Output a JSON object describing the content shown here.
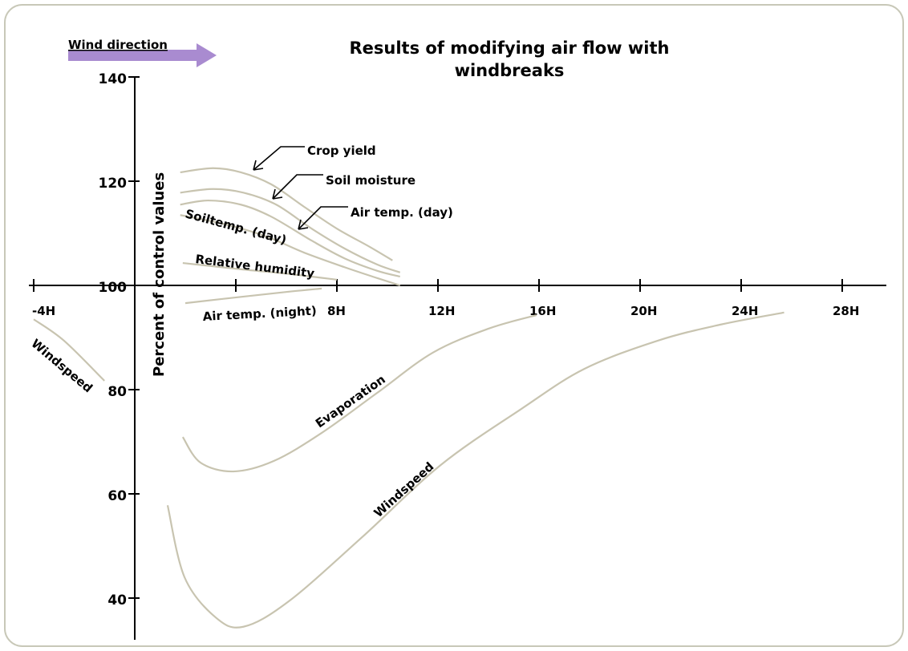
{
  "chart_data": {
    "type": "line",
    "title": "Results of modifying air flow with windbreaks",
    "ylabel": "Percent of control values",
    "annotation": "Wind direction",
    "color": "#c8c4b0",
    "xlim": [
      -4,
      30
    ],
    "ylim": [
      32,
      140
    ],
    "xticks": [
      {
        "value": -4,
        "label": "-4H"
      },
      {
        "value": 4,
        "label": null
      },
      {
        "value": 8,
        "label": "8H"
      },
      {
        "value": 12,
        "label": "12H"
      },
      {
        "value": 16,
        "label": "16H"
      },
      {
        "value": 20,
        "label": "20H"
      },
      {
        "value": 24,
        "label": "24H"
      },
      {
        "value": 28,
        "label": "28H"
      }
    ],
    "yticks": [
      140,
      120,
      100,
      80,
      60,
      40
    ],
    "series": [
      {
        "name": "Crop yield",
        "x": [
          1.8,
          3.1,
          4.2,
          5.4,
          6.7,
          8.0,
          9.3,
          10.2
        ],
        "values": [
          121.7,
          122.5,
          121.7,
          119.4,
          115.1,
          110.9,
          107.4,
          104.8
        ]
      },
      {
        "name": "Soil moisture",
        "x": [
          1.8,
          3.1,
          4.3,
          5.6,
          7.0,
          8.3,
          9.6,
          10.5
        ],
        "values": [
          117.8,
          118.5,
          117.8,
          115.5,
          110.9,
          107.1,
          104.0,
          102.5
        ]
      },
      {
        "name": "Air temp. (day)",
        "x": [
          1.8,
          2.9,
          4.2,
          5.4,
          7.0,
          8.3,
          9.6,
          10.5
        ],
        "values": [
          115.5,
          116.3,
          115.5,
          113.2,
          108.6,
          105.2,
          102.8,
          101.7
        ]
      },
      {
        "name": "Soiltemp. (day)",
        "x": [
          1.8,
          3.6,
          5.2,
          6.7,
          8.3,
          9.6,
          10.5
        ],
        "values": [
          113.5,
          111.7,
          109.4,
          106.3,
          103.5,
          101.4,
          100
        ]
      },
      {
        "name": "Relative humidity",
        "x": [
          1.9,
          4.2,
          6.1,
          8.0
        ],
        "values": [
          104.3,
          103.1,
          102.2,
          101.1
        ]
      },
      {
        "name": "Air temp. (night)",
        "x": [
          2.0,
          4.2,
          6.1,
          7.4
        ],
        "values": [
          96.6,
          97.8,
          98.8,
          99.4
        ]
      },
      {
        "name": "Evaporation",
        "x": [
          1.9,
          2.6,
          3.9,
          5.5,
          7.4,
          9.6,
          11.8,
          14.0,
          15.9
        ],
        "values": [
          70.9,
          66.0,
          64.3,
          66.3,
          71.7,
          79.4,
          87.1,
          91.7,
          94.3
        ]
      },
      {
        "name": "Windspeed",
        "x": [
          1.3,
          1.97,
          3.2,
          4.3,
          6.1,
          9.0,
          12.1,
          15.3,
          17.8,
          20.7,
          23.2,
          25.7
        ],
        "values": [
          57.8,
          44.0,
          36.3,
          34.5,
          39.4,
          51.7,
          65.5,
          76.3,
          84.0,
          89.4,
          92.5,
          94.8
        ]
      },
      {
        "name": "Windspeed",
        "x": [
          -4,
          -2.8,
          -1.2
        ],
        "values": [
          93.5,
          89.4,
          81.7
        ]
      }
    ]
  }
}
